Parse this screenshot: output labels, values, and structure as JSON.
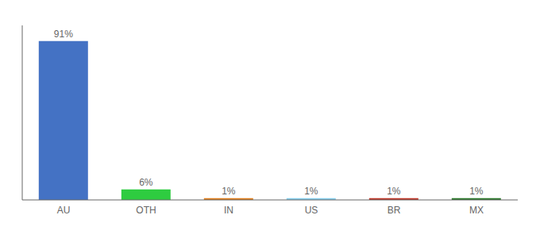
{
  "chart_data": {
    "type": "bar",
    "categories": [
      "AU",
      "OTH",
      "IN",
      "US",
      "BR",
      "MX"
    ],
    "values": [
      91,
      6,
      1,
      1,
      1,
      1
    ],
    "value_labels": [
      "91%",
      "6%",
      "1%",
      "1%",
      "1%",
      "1%"
    ],
    "data_labels": true,
    "colors": [
      "#4472c4",
      "#2ecc40",
      "#e08020",
      "#87ceeb",
      "#c0392b",
      "#2d7a2d"
    ],
    "ylim": [
      0,
      100
    ],
    "tick_labels": "x",
    "grid": false
  }
}
